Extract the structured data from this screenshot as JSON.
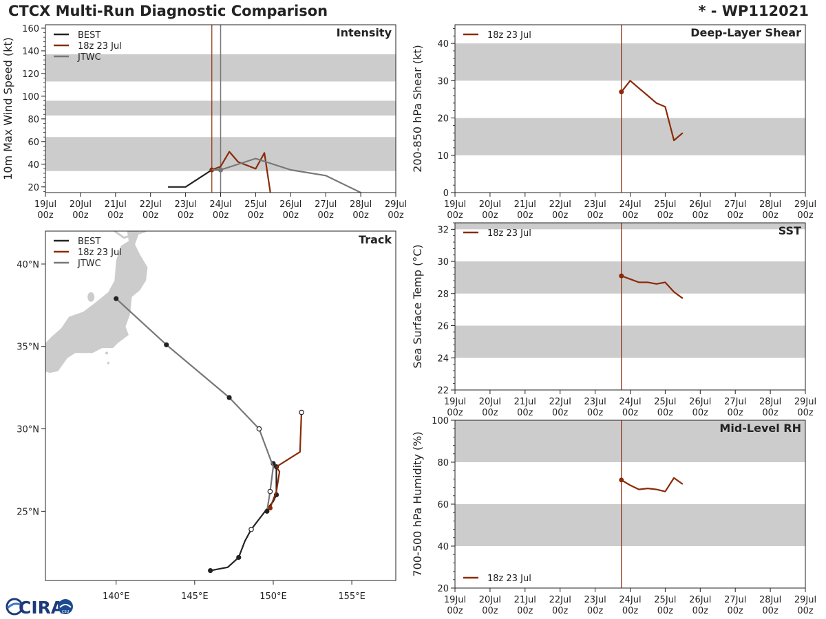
{
  "header": {
    "title": "CTCX Multi-Run Diagnostic Comparison",
    "storm_id": "* - WP112021"
  },
  "logo": {
    "text": "CIRA",
    "subtext": "CSU"
  },
  "colors": {
    "best": "#222222",
    "run": "#8b2a06",
    "jtwc": "#777777",
    "band": "#cccccc",
    "land": "#cccccc"
  },
  "legend": {
    "best": "BEST",
    "run": "18z 23 Jul",
    "jtwc": "JTWC"
  },
  "time_axis": {
    "days": [
      "19Jul",
      "20Jul",
      "21Jul",
      "22Jul",
      "23Jul",
      "24Jul",
      "25Jul",
      "26Jul",
      "27Jul",
      "28Jul",
      "29Jul"
    ],
    "hour": "00z",
    "run_day": 4.75
  },
  "chart_data": [
    {
      "id": "intensity",
      "type": "line",
      "title": "Intensity",
      "ylabel": "10m Max Wind Speed (kt)",
      "ylim": [
        15,
        163
      ],
      "yticks": [
        20,
        40,
        60,
        80,
        100,
        120,
        140,
        160
      ],
      "bands": [
        [
          34,
          64
        ],
        [
          83,
          96
        ],
        [
          113,
          137
        ]
      ],
      "series": [
        {
          "name": "BEST",
          "key": "best",
          "x": [
            3.5,
            4.0,
            4.75,
            5.0
          ],
          "y": [
            20,
            20,
            35,
            35
          ],
          "marker_at": 3
        },
        {
          "name": "18z 23 Jul",
          "key": "run",
          "x": [
            4.75,
            5.0,
            5.25,
            5.5,
            5.75,
            6.0,
            6.25,
            6.42
          ],
          "y": [
            35,
            38,
            51,
            42,
            39,
            36,
            50,
            15
          ],
          "marker_at": 0
        },
        {
          "name": "JTWC",
          "key": "jtwc",
          "x": [
            4.75,
            5.0,
            6.0,
            7.0,
            8.0,
            9.0
          ],
          "y": [
            35,
            35,
            45,
            35,
            30,
            15
          ],
          "marker_at": 1
        }
      ]
    },
    {
      "id": "shear",
      "type": "line",
      "title": "Deep-Layer Shear",
      "ylabel": "200-850 hPa Shear (kt)",
      "ylim": [
        0,
        45
      ],
      "yticks": [
        0,
        10,
        20,
        30,
        40
      ],
      "bands": [
        [
          10,
          20
        ],
        [
          30,
          40
        ]
      ],
      "series": [
        {
          "name": "18z 23 Jul",
          "key": "run",
          "x": [
            4.75,
            5.0,
            5.25,
            5.5,
            5.75,
            6.0,
            6.25,
            6.5
          ],
          "y": [
            27,
            30,
            28,
            26,
            24,
            23,
            14,
            16
          ],
          "marker_at": 0
        }
      ]
    },
    {
      "id": "sst",
      "type": "line",
      "title": "SST",
      "ylabel": "Sea Surface Temp (°C)",
      "ylim": [
        22,
        32.4
      ],
      "yticks": [
        22,
        24,
        26,
        28,
        30,
        32
      ],
      "bands": [
        [
          24,
          26
        ],
        [
          28,
          30
        ],
        [
          32,
          33
        ]
      ],
      "series": [
        {
          "name": "18z 23 Jul",
          "key": "run",
          "x": [
            4.75,
            5.0,
            5.25,
            5.5,
            5.75,
            6.0,
            6.25,
            6.5
          ],
          "y": [
            29.1,
            28.9,
            28.7,
            28.7,
            28.6,
            28.7,
            28.1,
            27.7
          ],
          "marker_at": 0
        }
      ]
    },
    {
      "id": "rh",
      "type": "line",
      "title": "Mid-Level RH",
      "ylabel": "700-500 hPa Humidity (%)",
      "ylim": [
        20,
        100
      ],
      "yticks": [
        20,
        40,
        60,
        80,
        100
      ],
      "bands": [
        [
          40,
          60
        ],
        [
          80,
          100
        ]
      ],
      "series": [
        {
          "name": "18z 23 Jul",
          "key": "run",
          "x": [
            4.75,
            5.0,
            5.25,
            5.5,
            5.75,
            6.0,
            6.25,
            6.5
          ],
          "y": [
            71.5,
            69,
            67,
            67.5,
            67,
            66,
            72.5,
            69.5
          ],
          "marker_at": 0
        }
      ]
    },
    {
      "id": "track",
      "type": "scatter",
      "title": "Track",
      "xlim": [
        135.5,
        157.8
      ],
      "ylim": [
        20.8,
        42.0
      ],
      "xticks": [
        140,
        145,
        150,
        155
      ],
      "xtick_labels": [
        "140°E",
        "145°E",
        "150°E",
        "155°E"
      ],
      "yticks": [
        25,
        30,
        35,
        40
      ],
      "ytick_labels": [
        "25°N",
        "30°N",
        "35°N",
        "40°N"
      ],
      "series": [
        {
          "name": "BEST",
          "key": "best",
          "lon": [
            146.0,
            147.1,
            147.8,
            148.2,
            148.6,
            149.4,
            150.0,
            150.2,
            150.2,
            150.0
          ],
          "lat": [
            21.4,
            21.6,
            22.2,
            23.2,
            23.9,
            24.9,
            25.6,
            26.0,
            27.7,
            27.9
          ],
          "filled": [
            0,
            2,
            7,
            8,
            9
          ],
          "open": [
            4
          ]
        },
        {
          "name": "18z 23 Jul",
          "key": "run",
          "lon": [
            149.8,
            150.2,
            150.4,
            150.2,
            151.7,
            151.8
          ],
          "lat": [
            25.2,
            26.2,
            27.4,
            27.7,
            28.6,
            31.0
          ],
          "filled": [
            0
          ],
          "open": [
            5
          ]
        },
        {
          "name": "JTWC",
          "key": "jtwc",
          "lon": [
            149.6,
            149.8,
            150.0,
            149.1,
            147.2,
            143.2,
            140.0
          ],
          "lat": [
            25.0,
            26.2,
            27.7,
            30.0,
            31.9,
            35.1,
            37.9
          ],
          "filled": [
            0,
            4,
            5,
            6
          ],
          "open": [
            1,
            3
          ]
        }
      ]
    }
  ]
}
